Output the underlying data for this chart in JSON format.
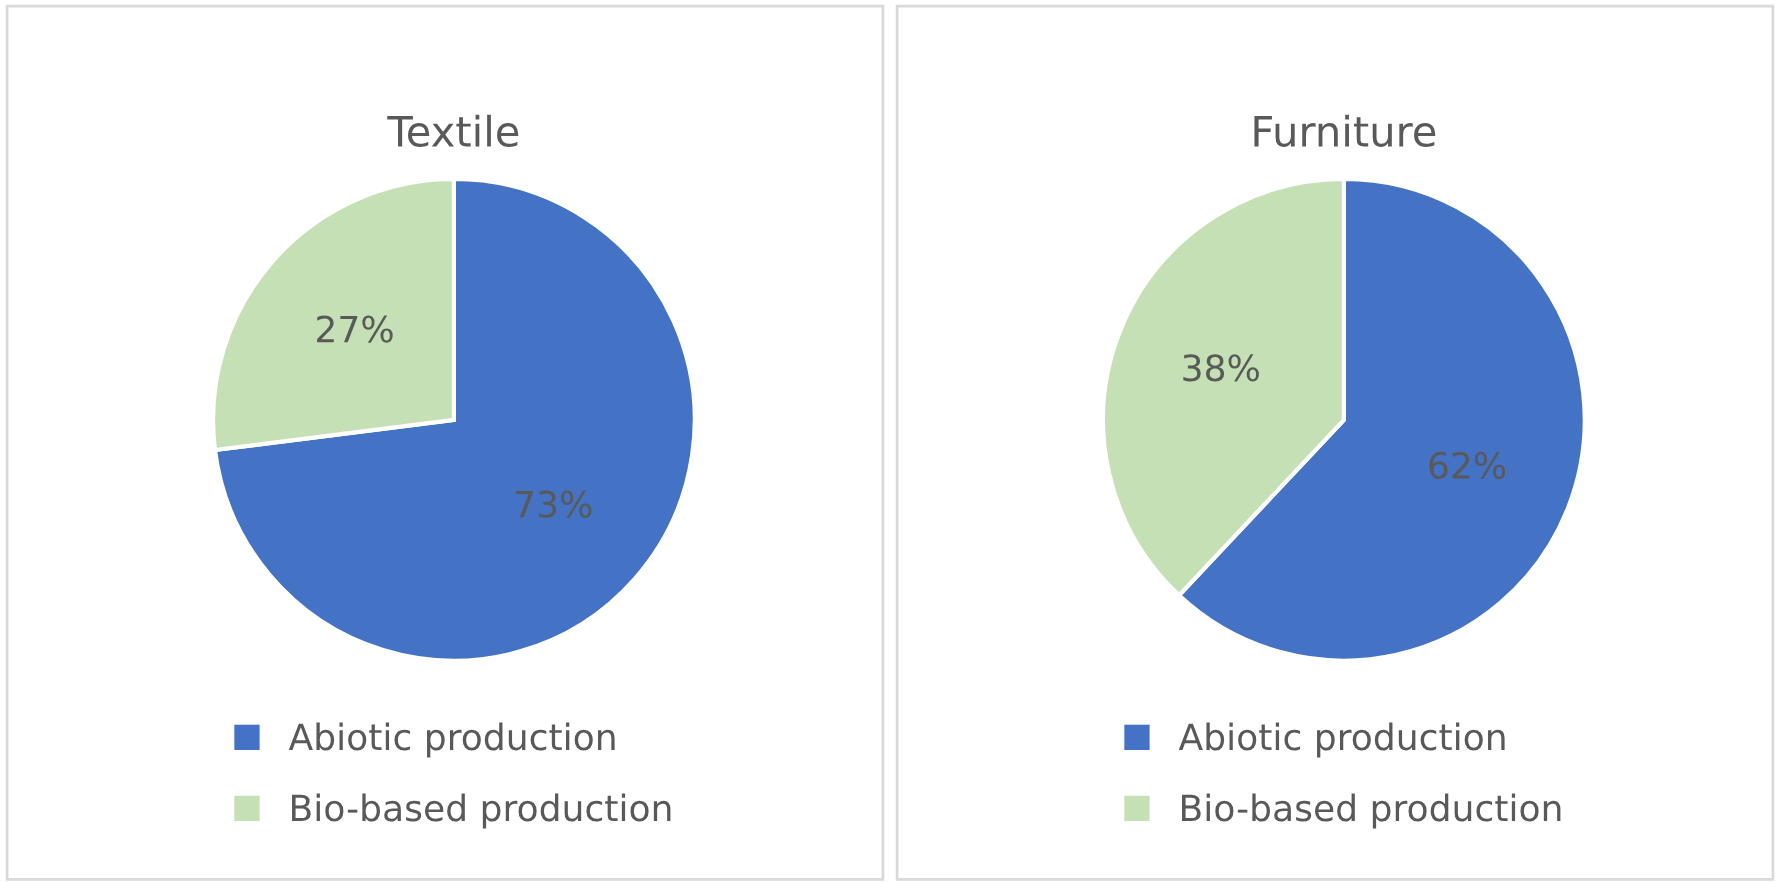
{
  "chart_data": [
    {
      "type": "pie",
      "title": "Textile",
      "categories": [
        "Abiotic production",
        "Bio-based production"
      ],
      "values": [
        73,
        27
      ],
      "value_labels": [
        "73%",
        "27%"
      ],
      "colors": [
        "#4472c4",
        "#c5e0b4"
      ],
      "legend": "bottom"
    },
    {
      "type": "pie",
      "title": "Furniture",
      "categories": [
        "Abiotic production",
        "Bio-based production"
      ],
      "values": [
        62,
        38
      ],
      "value_labels": [
        "62%",
        "38%"
      ],
      "colors": [
        "#4472c4",
        "#c5e0b4"
      ],
      "legend": "bottom"
    }
  ]
}
